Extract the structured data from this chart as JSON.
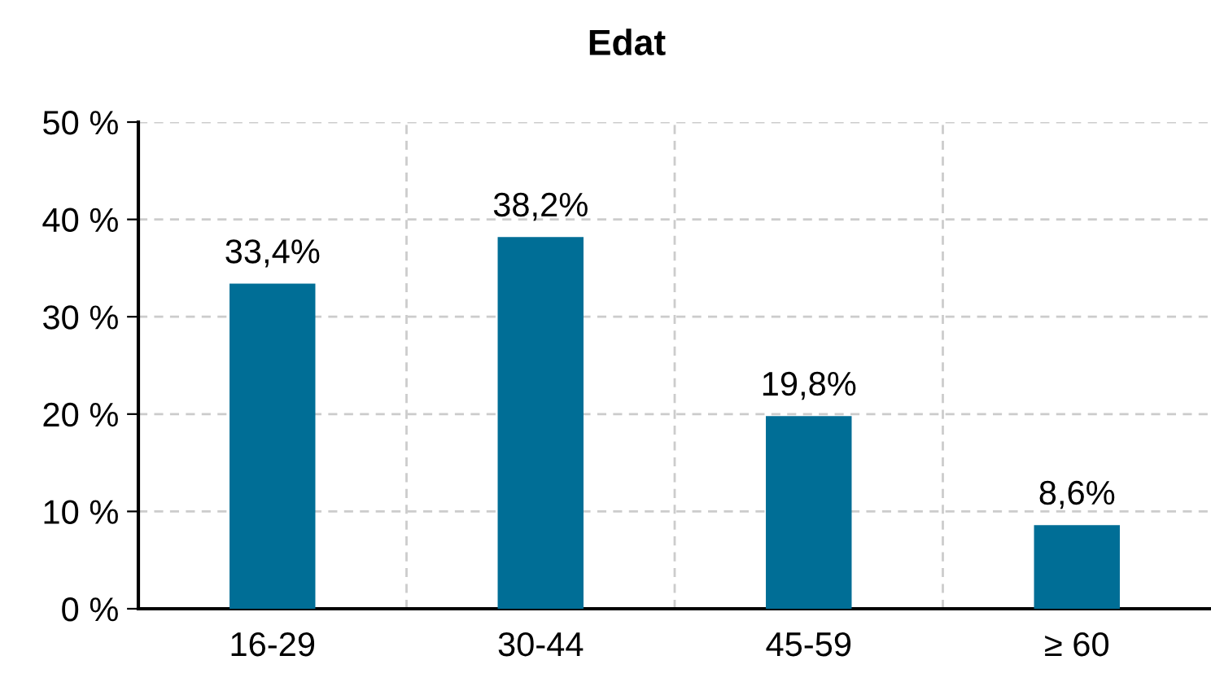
{
  "chart_data": {
    "type": "bar",
    "title": "Edat",
    "categories": [
      "16-29",
      "30-44",
      "45-59",
      "≥ 60"
    ],
    "values": [
      33.4,
      38.2,
      19.8,
      8.6
    ],
    "value_labels": [
      "33,4%",
      "38,2%",
      "19,8%",
      "8,6%"
    ],
    "color": "#006e96",
    "ylim": [
      0,
      50
    ],
    "yticks": [
      {
        "value": 0,
        "label": "0 %"
      },
      {
        "value": 10,
        "label": "10 %"
      },
      {
        "value": 20,
        "label": "20 %"
      },
      {
        "value": 30,
        "label": "30 %"
      },
      {
        "value": 40,
        "label": "40 %"
      },
      {
        "value": 50,
        "label": "50 %"
      }
    ],
    "grid": true
  }
}
